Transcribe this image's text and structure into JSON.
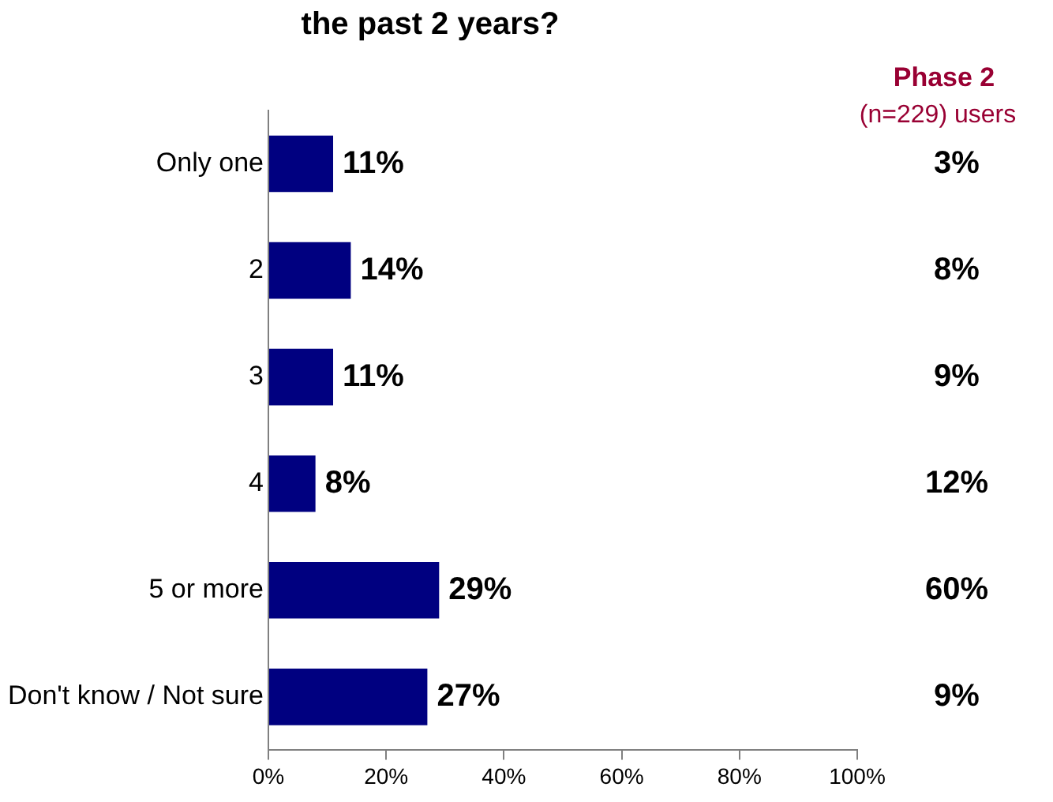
{
  "chart_data": {
    "type": "bar",
    "orientation": "horizontal",
    "title": "the past 2 years?",
    "categories": [
      "Only one",
      "2",
      "3",
      "4",
      "5 or more",
      "Don't know / Not sure"
    ],
    "values": [
      11,
      14,
      11,
      8,
      29,
      27
    ],
    "color": "#000080",
    "value_labels": [
      "11%",
      "14%",
      "11%",
      "8%",
      "29%",
      "27%"
    ],
    "xlim": [
      0,
      100
    ],
    "xticks": [
      {
        "value": 0,
        "label": "0%"
      },
      {
        "value": 20,
        "label": "20%"
      },
      {
        "value": 40,
        "label": "40%"
      },
      {
        "value": 60,
        "label": "60%"
      },
      {
        "value": 80,
        "label": "80%"
      },
      {
        "value": 100,
        "label": "100%"
      }
    ],
    "grid": false,
    "legend": false,
    "annotations": [
      "Phase 2",
      "(n=229) users",
      "3%",
      "8%",
      "9%",
      "12%",
      "60%",
      "9%"
    ]
  }
}
